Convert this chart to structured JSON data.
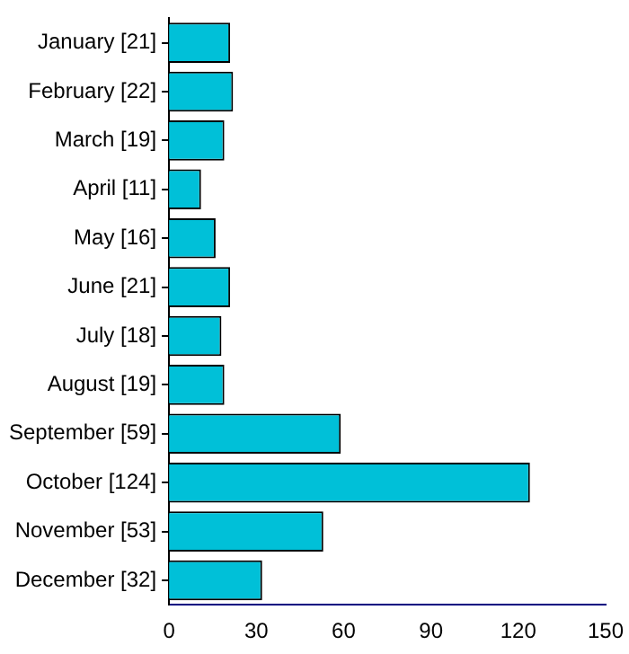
{
  "chart_data": {
    "type": "bar",
    "orientation": "horizontal",
    "categories": [
      "January [21]",
      "February [22]",
      "March [19]",
      "April [11]",
      "May [16]",
      "June [21]",
      "July [18]",
      "August [19]",
      "September [59]",
      "October [124]",
      "November [53]",
      "December [32]"
    ],
    "values": [
      21,
      22,
      19,
      11,
      16,
      21,
      18,
      19,
      59,
      124,
      53,
      32
    ],
    "color": "#00c0d8",
    "xlim": [
      0,
      150
    ],
    "xticks": [
      0,
      30,
      60,
      90,
      120,
      150
    ],
    "grid": false,
    "legend": false
  }
}
